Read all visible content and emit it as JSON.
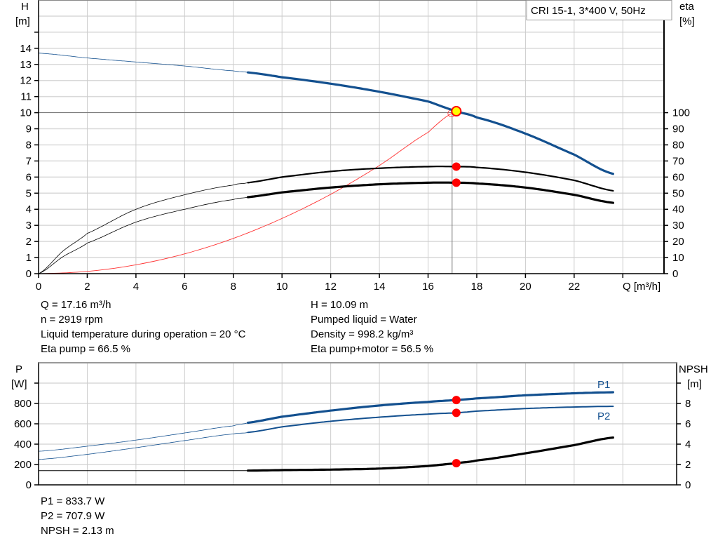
{
  "chart_data": [
    {
      "type": "line",
      "legend_box": "CRI 15-1, 3*400 V, 50Hz",
      "xlabel": "Q [m³/h]",
      "ylabel_left": [
        "H",
        "[m]"
      ],
      "ylabel_right": [
        "eta",
        "[%]"
      ],
      "xlim": [
        0,
        25.7
      ],
      "ylim_left": [
        0,
        17
      ],
      "ylim_right": [
        0,
        170
      ],
      "x_ticks": [
        "0",
        "2",
        "4",
        "6",
        "8",
        "10",
        "12",
        "14",
        "16",
        "18",
        "20",
        "22"
      ],
      "x_grid": [
        0,
        2,
        4,
        6,
        8,
        10,
        12,
        14,
        16,
        18,
        20,
        22,
        24
      ],
      "y_left_ticks": [
        "0",
        "1",
        "2",
        "3",
        "4",
        "5",
        "6",
        "7",
        "8",
        "9",
        "10",
        "11",
        "12",
        "13",
        "14"
      ],
      "y_right_ticks": [
        "0",
        "10",
        "20",
        "30",
        "40",
        "50",
        "60",
        "70",
        "80",
        "90",
        "100"
      ],
      "grid": true,
      "colors": {
        "head": "#13508f",
        "eta": "#000000",
        "system": "#ff3333",
        "point": "#ff0000",
        "duty_fill": "#ffff00"
      },
      "duty_point": {
        "Q": 17.16,
        "H": 10.09
      },
      "series": [
        {
          "key": "head",
          "axis": "left",
          "thick_from": 8.6,
          "x": [
            0,
            2,
            4,
            6,
            8,
            8.6,
            10,
            12,
            14,
            16,
            17.16,
            18,
            20,
            22,
            23.6
          ],
          "y": [
            13.7,
            13.4,
            13.15,
            12.9,
            12.6,
            12.5,
            12.2,
            11.8,
            11.3,
            10.7,
            10.09,
            9.7,
            8.7,
            7.4,
            6.2
          ]
        },
        {
          "key": "eta_pump",
          "axis": "right",
          "thick_from": 8.6,
          "marker_at": 17.16,
          "x": [
            0,
            1,
            2,
            4,
            6,
            8,
            8.6,
            10,
            12,
            14,
            16,
            17.16,
            18,
            20,
            22,
            23.6
          ],
          "y": [
            0,
            14,
            25,
            40,
            49,
            55,
            56.5,
            60,
            63.5,
            65.5,
            66.5,
            66.5,
            66,
            63,
            58,
            51.5
          ]
        },
        {
          "key": "eta_pump_motor",
          "axis": "right",
          "thick_from": 8.6,
          "marker_at": 17.16,
          "x": [
            0,
            1,
            2,
            4,
            6,
            8,
            8.6,
            10,
            12,
            14,
            16,
            17.16,
            18,
            20,
            22,
            23.6
          ],
          "y": [
            0,
            10.5,
            19,
            32,
            40,
            46,
            47.5,
            50.5,
            53.5,
            55.5,
            56.5,
            56.5,
            56,
            53.5,
            49,
            44
          ]
        },
        {
          "key": "system",
          "axis": "left",
          "x": [
            0,
            2,
            4,
            6,
            8,
            10,
            12,
            14,
            16,
            17.16
          ],
          "y": [
            0,
            0.14,
            0.55,
            1.23,
            2.19,
            3.43,
            4.93,
            6.72,
            8.77,
            10.09
          ]
        }
      ]
    },
    {
      "type": "line",
      "xlim": [
        0,
        26.2
      ],
      "ylabel_left": [
        "P",
        "[W]"
      ],
      "ylabel_right": [
        "NPSH",
        "[m]"
      ],
      "ylim_left": [
        0,
        1200
      ],
      "ylim_right": [
        0,
        12
      ],
      "y_left_ticks": [
        "0",
        "200",
        "400",
        "600",
        "800"
      ],
      "y_right_ticks": [
        "0",
        "2",
        "4",
        "6",
        "8"
      ],
      "grid": true,
      "colors": {
        "p1": "#13508f",
        "p2": "#13508f",
        "npsh": "#000000",
        "point": "#ff0000"
      },
      "series": [
        {
          "key": "p1",
          "name": "P1",
          "axis": "left",
          "thick_from": 8.6,
          "marker_at": 17.16,
          "x": [
            0,
            2,
            4,
            6,
            8,
            8.6,
            10,
            12,
            14,
            16,
            17.16,
            18,
            20,
            22,
            23.6
          ],
          "y": [
            330,
            380,
            440,
            510,
            580,
            610,
            670,
            730,
            780,
            815,
            833.7,
            850,
            880,
            900,
            910
          ]
        },
        {
          "key": "p2",
          "name": "P2",
          "axis": "left",
          "thick_from": 8.6,
          "medium": true,
          "marker_at": 17.16,
          "x": [
            0,
            2,
            4,
            6,
            8,
            8.6,
            10,
            12,
            14,
            16,
            17.16,
            18,
            20,
            22,
            23.6
          ],
          "y": [
            250,
            300,
            365,
            435,
            500,
            515,
            570,
            625,
            665,
            695,
            707.9,
            725,
            750,
            765,
            772
          ]
        },
        {
          "key": "npsh",
          "axis": "right",
          "thick_from": 8.6,
          "marker_at": 17.16,
          "x": [
            0,
            4,
            8.6,
            10,
            12,
            14,
            16,
            17.16,
            18,
            20,
            22,
            23.6
          ],
          "y": [
            1.4,
            1.4,
            1.4,
            1.45,
            1.5,
            1.6,
            1.85,
            2.13,
            2.4,
            3.1,
            3.9,
            4.65
          ]
        }
      ]
    }
  ],
  "info_top_left": [
    "Q = 17.16 m³/h",
    "n = 2919 rpm",
    "Liquid temperature during operation = 20 °C",
    "Eta pump = 66.5 %"
  ],
  "info_top_right": [
    "H = 10.09 m",
    "Pumped liquid = Water",
    "Density = 998.2 kg/m³",
    "Eta pump+motor = 56.5 %"
  ],
  "info_bottom": [
    "P1 = 833.7 W",
    "P2 = 707.9 W",
    "NPSH = 2.13 m"
  ]
}
